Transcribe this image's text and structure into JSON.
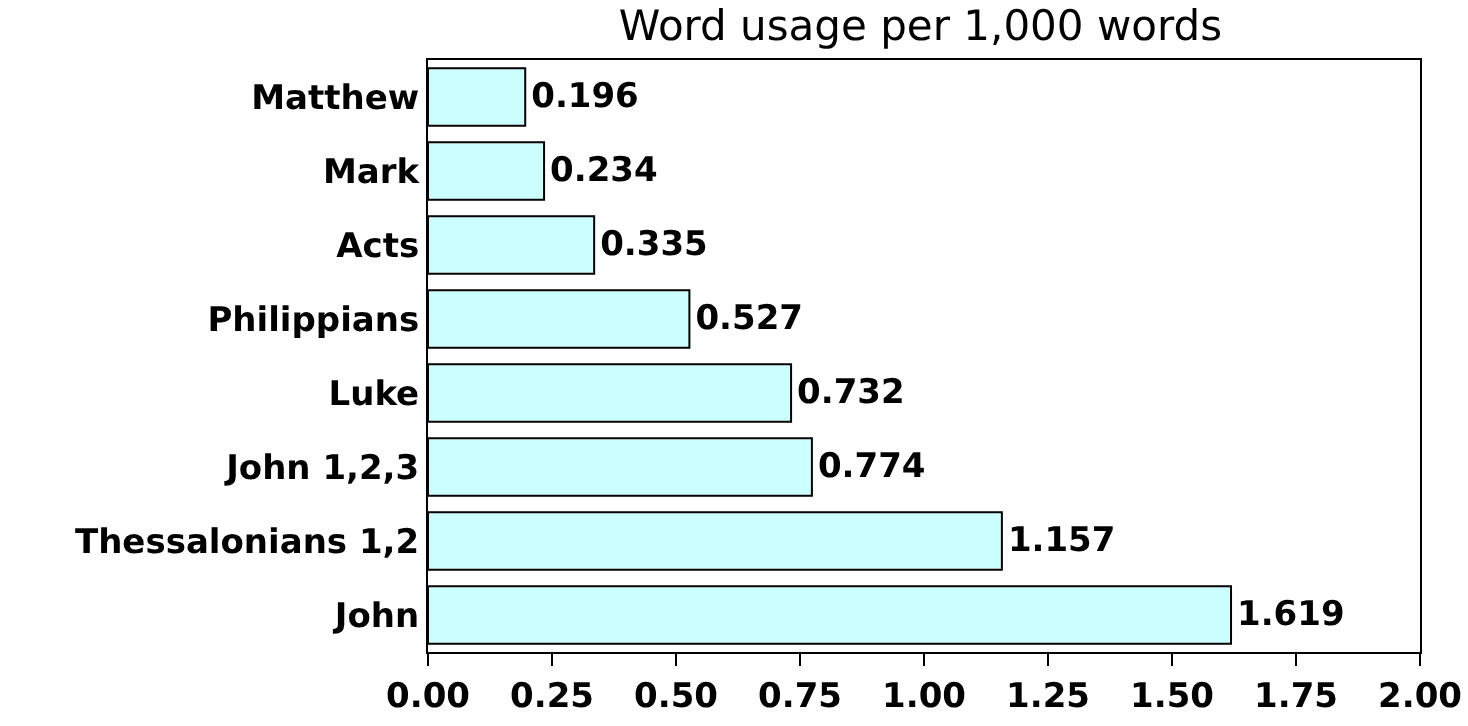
{
  "chart_data": {
    "type": "bar",
    "orientation": "horizontal",
    "title": "Word usage per 1,000 words",
    "categories": [
      "Matthew",
      "Mark",
      "Acts",
      "Philippians",
      "Luke",
      "John 1,2,3",
      "Thessalonians 1,2",
      "John"
    ],
    "values": [
      0.196,
      0.234,
      0.335,
      0.527,
      0.732,
      0.774,
      1.157,
      1.619
    ],
    "color": "#ccffff",
    "data_labels": true,
    "xlim": [
      0,
      2
    ],
    "xticks": [
      {
        "value": 0,
        "label": "0.00"
      },
      {
        "value": 0.25,
        "label": "0.25"
      },
      {
        "value": 0.5,
        "label": "0.50"
      },
      {
        "value": 0.75,
        "label": "0.75"
      },
      {
        "value": 1,
        "label": "1.00"
      },
      {
        "value": 1.25,
        "label": "1.25"
      },
      {
        "value": 1.5,
        "label": "1.50"
      },
      {
        "value": 1.75,
        "label": "1.75"
      },
      {
        "value": 2,
        "label": "2.00"
      }
    ]
  }
}
